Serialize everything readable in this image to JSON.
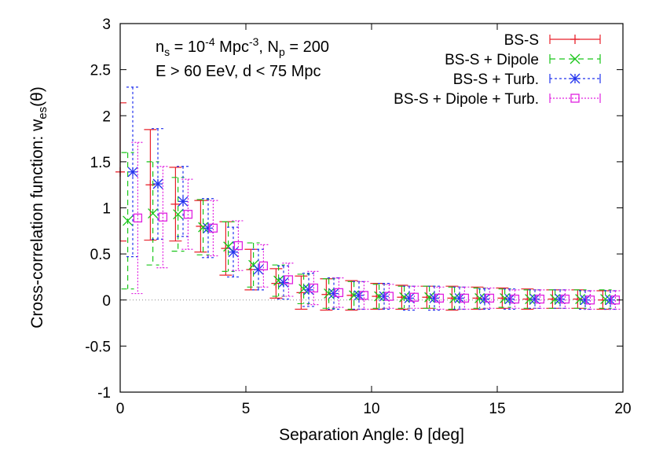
{
  "chart_data": {
    "type": "scatter",
    "xlabel_main": "Separation Angle: ",
    "xlabel_sym": "θ",
    "xlabel_unit": " [deg]",
    "ylabel_main": "Cross-correlation function: w",
    "ylabel_sub": "es",
    "ylabel_tail": "(θ)",
    "xlim": [
      0,
      20
    ],
    "ylim": [
      -1,
      3
    ],
    "xticks": [
      "0",
      "5",
      "10",
      "15",
      "20"
    ],
    "yticks": [
      "-1",
      "-0.5",
      "0",
      "0.5",
      "1",
      "1.5",
      "2",
      "2.5",
      "3"
    ],
    "annotation": {
      "line1_a": "n",
      "line1_a_sub": "s",
      "line1_b": " = 10",
      "line1_b_sup": "-4",
      "line1_c": " Mpc",
      "line1_c_sup": "-3",
      "line1_d": ", N",
      "line1_d_sub": "p",
      "line1_e": " = 200",
      "line2": "E > 60 EeV, d < 75 Mpc"
    },
    "legend_position": "top-right",
    "zero_line": true,
    "series": [
      {
        "name": "BS-S",
        "color": "#e8202a",
        "marker": "plus",
        "dash": "",
        "x": [
          0.0,
          1.2,
          2.2,
          3.2,
          4.2,
          5.2,
          6.2,
          7.2,
          8.2,
          9.2,
          10.2,
          11.2,
          12.2,
          13.2,
          14.2,
          15.2,
          16.2,
          17.2,
          18.2,
          19.2
        ],
        "y": [
          1.39,
          1.25,
          1.04,
          0.8,
          0.56,
          0.33,
          0.18,
          0.08,
          0.06,
          0.05,
          0.04,
          0.03,
          0.03,
          0.02,
          0.02,
          0.02,
          0.01,
          0.01,
          0.01,
          0.0
        ],
        "err": [
          0.75,
          0.6,
          0.4,
          0.28,
          0.29,
          0.22,
          0.16,
          0.18,
          0.17,
          0.16,
          0.14,
          0.13,
          0.12,
          0.13,
          0.12,
          0.11,
          0.11,
          0.1,
          0.1,
          0.1
        ]
      },
      {
        "name": "BS-S + Dipole",
        "color": "#19c519",
        "marker": "cross",
        "dash": "7,5",
        "x": [
          0.3,
          1.3,
          2.3,
          3.3,
          4.3,
          5.3,
          6.3,
          7.3,
          8.3,
          9.3,
          10.3,
          11.3,
          12.3,
          13.3,
          14.3,
          15.3,
          16.3,
          17.3,
          18.3,
          19.3
        ],
        "y": [
          0.86,
          0.94,
          0.93,
          0.79,
          0.58,
          0.38,
          0.21,
          0.12,
          0.07,
          0.05,
          0.04,
          0.03,
          0.03,
          0.02,
          0.02,
          0.02,
          0.01,
          0.01,
          0.01,
          0.01
        ],
        "err": [
          0.74,
          0.56,
          0.4,
          0.3,
          0.27,
          0.24,
          0.17,
          0.16,
          0.16,
          0.15,
          0.13,
          0.12,
          0.12,
          0.12,
          0.11,
          0.1,
          0.1,
          0.1,
          0.1,
          0.1
        ]
      },
      {
        "name": "BS-S + Turb.",
        "color": "#2233ee",
        "marker": "star",
        "dash": "3,3",
        "x": [
          0.5,
          1.5,
          2.5,
          3.5,
          4.5,
          5.5,
          6.5,
          7.5,
          8.5,
          9.5,
          10.5,
          11.5,
          12.5,
          13.5,
          14.5,
          15.5,
          16.5,
          17.5,
          18.5,
          19.5
        ],
        "y": [
          1.39,
          1.26,
          1.07,
          0.78,
          0.52,
          0.33,
          0.19,
          0.11,
          0.07,
          0.05,
          0.04,
          0.02,
          0.02,
          0.02,
          0.01,
          0.01,
          0.01,
          0.01,
          0.0,
          0.0
        ],
        "err": [
          0.92,
          0.6,
          0.38,
          0.32,
          0.27,
          0.22,
          0.18,
          0.18,
          0.17,
          0.15,
          0.14,
          0.13,
          0.13,
          0.12,
          0.11,
          0.11,
          0.1,
          0.1,
          0.1,
          0.1
        ]
      },
      {
        "name": "BS-S + Dipole + Turb.",
        "color": "#e020e0",
        "marker": "square",
        "dash": "2,2",
        "x": [
          0.7,
          1.7,
          2.7,
          3.7,
          4.7,
          5.7,
          6.7,
          7.7,
          8.7,
          9.7,
          10.7,
          11.7,
          12.7,
          13.7,
          14.7,
          15.7,
          16.7,
          17.7,
          18.7,
          19.7
        ],
        "y": [
          0.89,
          0.9,
          0.93,
          0.78,
          0.59,
          0.37,
          0.22,
          0.13,
          0.08,
          0.05,
          0.04,
          0.03,
          0.02,
          0.02,
          0.02,
          0.01,
          0.01,
          0.01,
          0.0,
          0.0
        ],
        "err": [
          0.82,
          0.55,
          0.38,
          0.3,
          0.27,
          0.23,
          0.18,
          0.18,
          0.16,
          0.15,
          0.13,
          0.12,
          0.12,
          0.12,
          0.11,
          0.1,
          0.1,
          0.1,
          0.1,
          0.1
        ]
      }
    ]
  }
}
